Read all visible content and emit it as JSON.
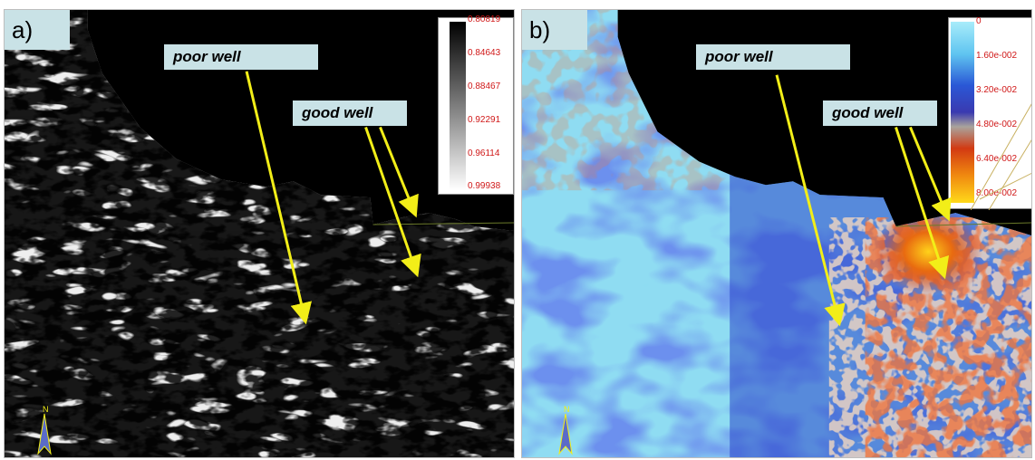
{
  "panel_a": {
    "label": "a)",
    "callouts": {
      "poor": "poor well",
      "good": "good well"
    },
    "colorbar": {
      "ticks": [
        "0.80819",
        "0.84643",
        "0.88467",
        "0.92291",
        "0.96114",
        "0.99938"
      ]
    },
    "north_label": "N"
  },
  "panel_b": {
    "label": "b)",
    "callouts": {
      "poor": "poor well",
      "good": "good well"
    },
    "colorbar": {
      "ticks": [
        "0",
        "1.60e-002",
        "3.20e-002",
        "4.80e-002",
        "6.40e-002",
        "8.00e-002"
      ]
    },
    "north_label": "N"
  },
  "colors": {
    "arrow": "#f2ee18",
    "label_bg": "#c9e2e6",
    "background": "#000000"
  }
}
